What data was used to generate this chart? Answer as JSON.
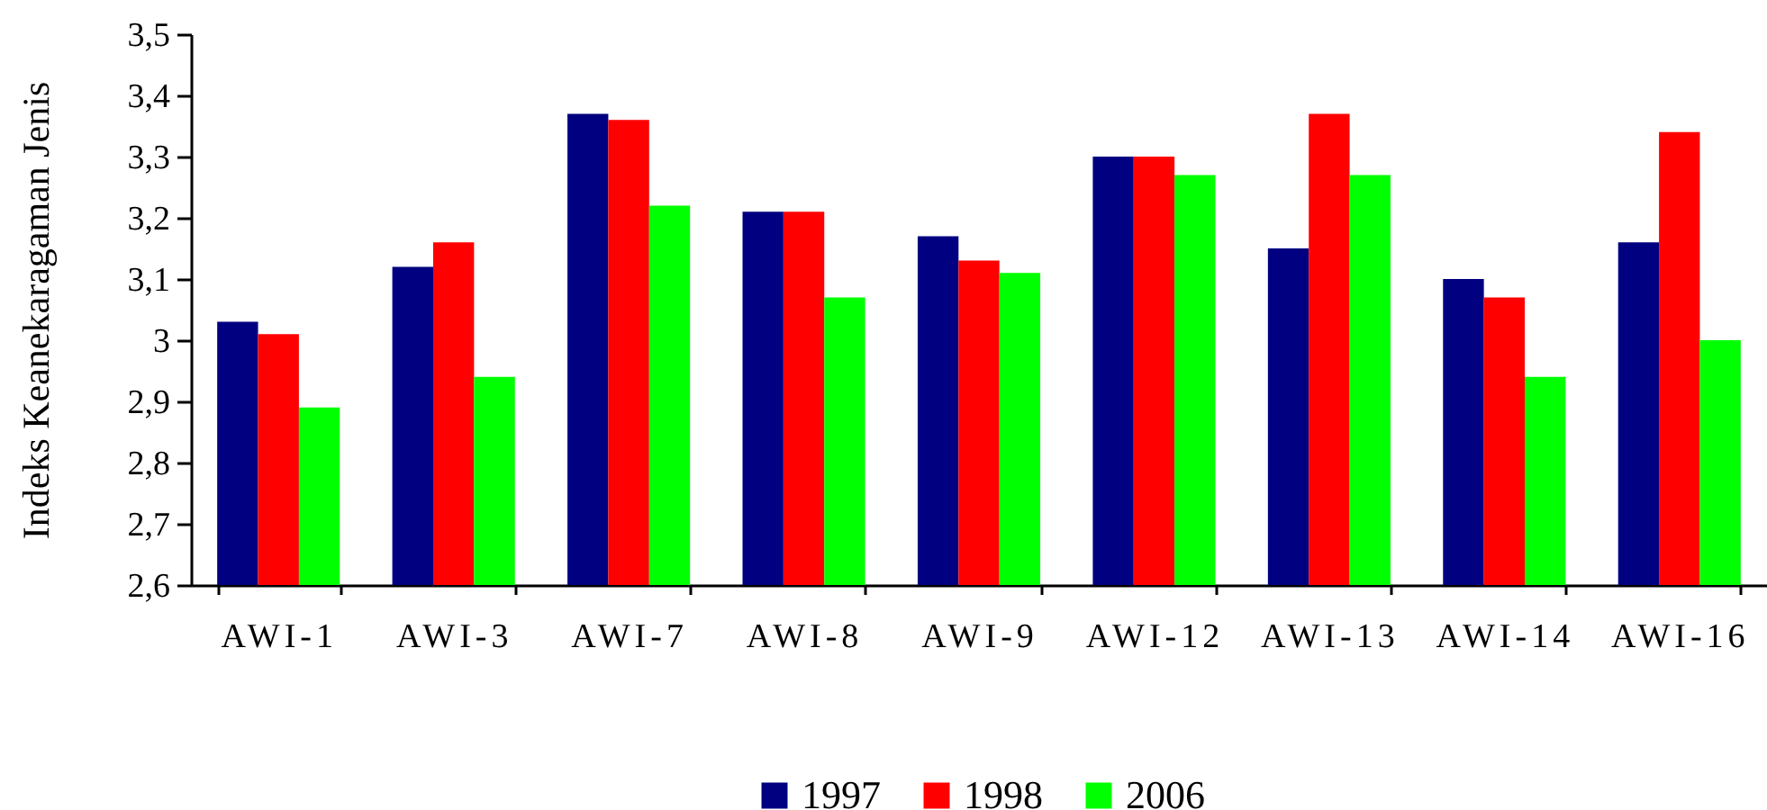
{
  "chart_data": {
    "type": "bar",
    "ylabel": "Indeks Keanekaragaman Jenis",
    "categories": [
      "AWI-1",
      "AWI-3",
      "AWI-7",
      "AWI-8",
      "AWI-9",
      "AWI-12",
      "AWI-13",
      "AWI-14",
      "AWI-16"
    ],
    "series": [
      {
        "name": "1997",
        "color": "#000080",
        "values": [
          3.03,
          3.12,
          3.37,
          3.21,
          3.17,
          3.3,
          3.15,
          3.1,
          3.16
        ]
      },
      {
        "name": "1998",
        "color": "#ff0000",
        "values": [
          3.01,
          3.16,
          3.36,
          3.21,
          3.13,
          3.3,
          3.37,
          3.07,
          3.34
        ]
      },
      {
        "name": "2006",
        "color": "#00ff00",
        "values": [
          2.89,
          2.94,
          3.22,
          3.07,
          3.11,
          3.27,
          3.27,
          2.94,
          3.0
        ]
      }
    ],
    "ylim": [
      2.6,
      3.5
    ],
    "yticks": [
      {
        "value": 2.6,
        "label": "2,6"
      },
      {
        "value": 2.7,
        "label": "2,7"
      },
      {
        "value": 2.8,
        "label": "2,8"
      },
      {
        "value": 2.9,
        "label": "2,9"
      },
      3,
      {
        "value": 3.1,
        "label": "3,1"
      },
      {
        "value": 3.2,
        "label": "3,2"
      },
      {
        "value": 3.3,
        "label": "3,3"
      },
      {
        "value": 3.4,
        "label": "3,4"
      },
      {
        "value": 3.5,
        "label": "3,5"
      }
    ],
    "legend": "bottom"
  }
}
